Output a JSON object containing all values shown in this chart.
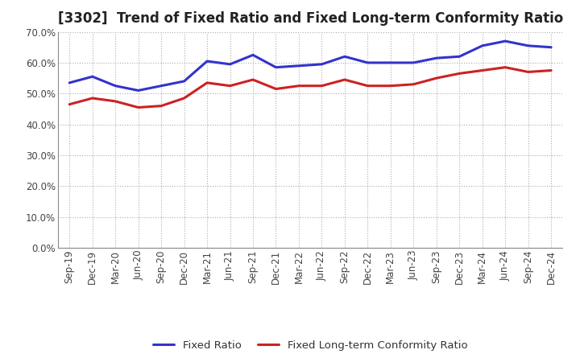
{
  "title": "[3302]  Trend of Fixed Ratio and Fixed Long-term Conformity Ratio",
  "x_labels": [
    "Sep-19",
    "Dec-19",
    "Mar-20",
    "Jun-20",
    "Sep-20",
    "Dec-20",
    "Mar-21",
    "Jun-21",
    "Sep-21",
    "Dec-21",
    "Mar-22",
    "Jun-22",
    "Sep-22",
    "Dec-22",
    "Mar-23",
    "Jun-23",
    "Sep-23",
    "Dec-23",
    "Mar-24",
    "Jun-24",
    "Sep-24",
    "Dec-24"
  ],
  "fixed_ratio": [
    53.5,
    55.5,
    52.5,
    51.0,
    52.5,
    54.0,
    60.5,
    59.5,
    62.5,
    58.5,
    59.0,
    59.5,
    62.0,
    60.0,
    60.0,
    60.0,
    61.5,
    62.0,
    65.5,
    67.0,
    65.5,
    65.0
  ],
  "fixed_lt_ratio": [
    46.5,
    48.5,
    47.5,
    45.5,
    46.0,
    48.5,
    53.5,
    52.5,
    54.5,
    51.5,
    52.5,
    52.5,
    54.5,
    52.5,
    52.5,
    53.0,
    55.0,
    56.5,
    57.5,
    58.5,
    57.0,
    57.5
  ],
  "fixed_ratio_color": "#3333CC",
  "fixed_lt_ratio_color": "#CC2222",
  "ylim": [
    0,
    70
  ],
  "yticks": [
    0,
    10,
    20,
    30,
    40,
    50,
    60,
    70
  ],
  "ytick_labels": [
    "0.0%",
    "10.0%",
    "20.0%",
    "30.0%",
    "40.0%",
    "50.0%",
    "60.0%",
    "70.0%"
  ],
  "bg_color": "#FFFFFF",
  "plot_bg_color": "#FFFFFF",
  "grid_color": "#999999",
  "legend_fixed_ratio": "Fixed Ratio",
  "legend_fixed_lt_ratio": "Fixed Long-term Conformity Ratio",
  "line_width": 2.2,
  "title_fontsize": 12,
  "tick_fontsize": 8.5,
  "legend_fontsize": 9.5
}
